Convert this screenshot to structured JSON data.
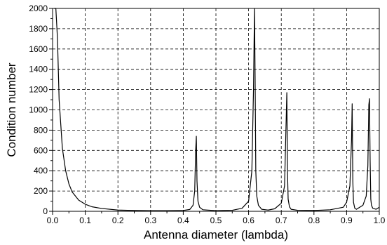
{
  "chart_data": {
    "type": "line",
    "title": "",
    "xlabel": "Antenna diameter (lambda)",
    "ylabel": "Condition number",
    "xlim": [
      0.0,
      1.0
    ],
    "ylim": [
      0,
      2000
    ],
    "grid": true,
    "x_ticks": [
      "0.0",
      "0.1",
      "0.2",
      "0.3",
      "0.4",
      "0.5",
      "0.6",
      "0.7",
      "0.8",
      "0.9",
      "1.0"
    ],
    "y_ticks": [
      "0",
      "200",
      "400",
      "600",
      "800",
      "1000",
      "1200",
      "1400",
      "1600",
      "1800",
      "2000"
    ],
    "series": [
      {
        "name": "",
        "x": [
          0.005,
          0.01,
          0.015,
          0.02,
          0.03,
          0.04,
          0.05,
          0.06,
          0.08,
          0.1,
          0.12,
          0.15,
          0.2,
          0.25,
          0.3,
          0.35,
          0.4,
          0.42,
          0.43,
          0.435,
          0.438,
          0.44,
          0.442,
          0.445,
          0.45,
          0.46,
          0.5,
          0.55,
          0.58,
          0.6,
          0.61,
          0.615,
          0.618,
          0.62,
          0.622,
          0.625,
          0.63,
          0.64,
          0.66,
          0.68,
          0.7,
          0.71,
          0.715,
          0.717,
          0.719,
          0.721,
          0.725,
          0.73,
          0.75,
          0.8,
          0.85,
          0.89,
          0.9,
          0.91,
          0.915,
          0.917,
          0.919,
          0.921,
          0.925,
          0.93,
          0.95,
          0.96,
          0.965,
          0.968,
          0.97,
          0.972,
          0.974,
          0.976,
          0.98,
          0.99,
          1.0
        ],
        "y": [
          2000,
          2000,
          1700,
          1100,
          620,
          400,
          270,
          190,
          110,
          70,
          45,
          28,
          12,
          8,
          6,
          6,
          8,
          18,
          60,
          200,
          600,
          740,
          300,
          100,
          40,
          15,
          6,
          10,
          30,
          100,
          400,
          1200,
          2000,
          1300,
          400,
          150,
          60,
          20,
          12,
          25,
          80,
          250,
          900,
          1170,
          400,
          120,
          45,
          20,
          10,
          8,
          15,
          40,
          90,
          250,
          700,
          1060,
          300,
          90,
          30,
          20,
          60,
          150,
          450,
          1050,
          1110,
          500,
          120,
          60,
          30,
          20,
          40
        ]
      }
    ]
  }
}
